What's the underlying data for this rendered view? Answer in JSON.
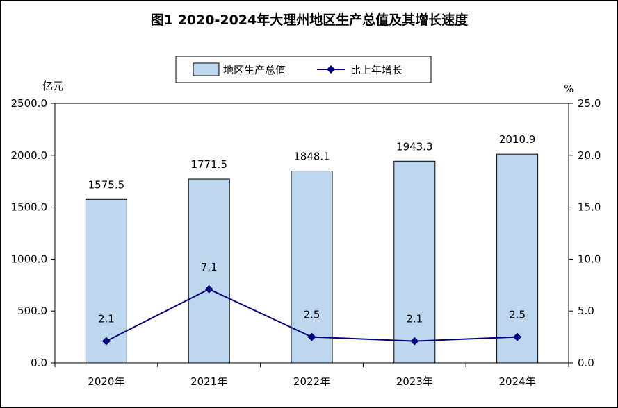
{
  "chart_data": {
    "type": "bar+line",
    "title": "图1  2020-2024年大理州地区生产总值及其增长速度",
    "categories": [
      "2020年",
      "2021年",
      "2022年",
      "2023年",
      "2024年"
    ],
    "series": [
      {
        "name": "地区生产总值",
        "type": "bar",
        "axis": "left",
        "values": [
          1575.5,
          1771.5,
          1848.1,
          1943.3,
          2010.9
        ],
        "labels": [
          "1575.5",
          "1771.5",
          "1848.1",
          "1943.3",
          "2010.9"
        ],
        "color": "#BDD7EE"
      },
      {
        "name": "比上年增长",
        "type": "line",
        "axis": "right",
        "values": [
          2.1,
          7.1,
          2.5,
          2.1,
          2.5
        ],
        "labels": [
          "2.1",
          "7.1",
          "2.5",
          "2.1",
          "2.5"
        ],
        "color": "#00007F"
      }
    ],
    "y_left": {
      "unit": "亿元",
      "range": [
        0,
        2500
      ],
      "ticks": [
        "0.0",
        "500.0",
        "1000.0",
        "1500.0",
        "2000.0",
        "2500.0"
      ]
    },
    "y_right": {
      "unit": "%",
      "range": [
        0,
        25
      ],
      "ticks": [
        "0.0",
        "5.0",
        "10.0",
        "15.0",
        "20.0",
        "25.0"
      ]
    },
    "grid": false,
    "legend_position": "top-center"
  }
}
